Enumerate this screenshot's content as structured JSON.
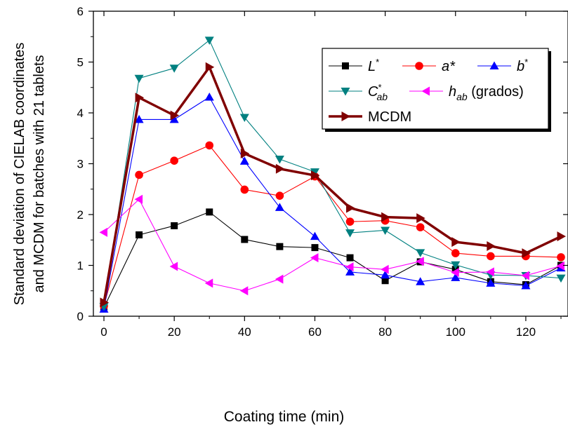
{
  "chart_data": {
    "type": "line",
    "xlabel": "Coating time (min)",
    "ylabel_line1": "Standard deviation of CIELAB coordinates",
    "ylabel_line2": "and MCDM for batches with 21 tablets",
    "xlim": [
      -3,
      132
    ],
    "ylim": [
      0,
      6
    ],
    "xticks": [
      "0",
      "20",
      "40",
      "60",
      "80",
      "100",
      "120"
    ],
    "yticks": [
      "0",
      "1",
      "2",
      "3",
      "4",
      "5",
      "6"
    ],
    "legend_position": "top-right",
    "x": [
      0,
      10,
      20,
      30,
      40,
      50,
      60,
      70,
      80,
      90,
      100,
      110,
      120,
      130
    ],
    "series": [
      {
        "name": "L*",
        "label_main": "L",
        "label_sup": "*",
        "label_sub": "",
        "label_suffix": "",
        "marker": "square",
        "color": "#000000",
        "line_color": "#000000",
        "values": [
          0.17,
          1.6,
          1.78,
          2.05,
          1.51,
          1.37,
          1.35,
          1.15,
          0.7,
          1.07,
          0.92,
          0.68,
          0.62,
          1.0
        ]
      },
      {
        "name": "a*",
        "label_main": "a*",
        "label_sup": "",
        "label_sub": "",
        "label_suffix": "",
        "marker": "circle",
        "color": "#ff0000",
        "line_color": "#ff0000",
        "values": [
          0.2,
          2.78,
          3.06,
          3.36,
          2.49,
          2.37,
          2.75,
          1.86,
          1.88,
          1.75,
          1.24,
          1.18,
          1.18,
          1.16
        ]
      },
      {
        "name": "b*",
        "label_main": "b",
        "label_sup": "*",
        "label_sub": "",
        "label_suffix": "",
        "marker": "triangle-up",
        "color": "#0000ff",
        "line_color": "#0000ff",
        "values": [
          0.14,
          3.87,
          3.87,
          4.31,
          3.05,
          2.14,
          1.57,
          0.87,
          0.81,
          0.68,
          0.76,
          0.65,
          0.6,
          0.95
        ]
      },
      {
        "name": "C*ab",
        "label_main": "C",
        "label_sup": "*",
        "label_sub": "ab",
        "label_suffix": "",
        "marker": "triangle-down",
        "color": "#008080",
        "line_color": "#008080",
        "values": [
          0.19,
          4.68,
          4.88,
          5.43,
          3.91,
          3.09,
          2.84,
          1.64,
          1.69,
          1.25,
          1.01,
          0.81,
          0.8,
          0.75
        ]
      },
      {
        "name": "hab (grados)",
        "label_main": "h",
        "label_sup": "",
        "label_sub": "ab",
        "label_suffix": " (grados)",
        "marker": "triangle-left",
        "color": "#ff00ff",
        "line_color": "#ff00ff",
        "values": [
          1.65,
          2.3,
          0.98,
          0.65,
          0.5,
          0.73,
          1.15,
          0.97,
          0.92,
          1.08,
          0.86,
          0.87,
          0.8,
          0.99
        ]
      },
      {
        "name": "MCDM",
        "label_main": "MCDM",
        "label_sup": "",
        "label_sub": "",
        "label_suffix": "",
        "marker": "triangle-right",
        "color": "#800000",
        "line_color": "#800000",
        "values": [
          0.27,
          4.3,
          3.95,
          4.9,
          3.2,
          2.9,
          2.77,
          2.13,
          1.95,
          1.93,
          1.46,
          1.38,
          1.24,
          1.57
        ]
      }
    ]
  }
}
